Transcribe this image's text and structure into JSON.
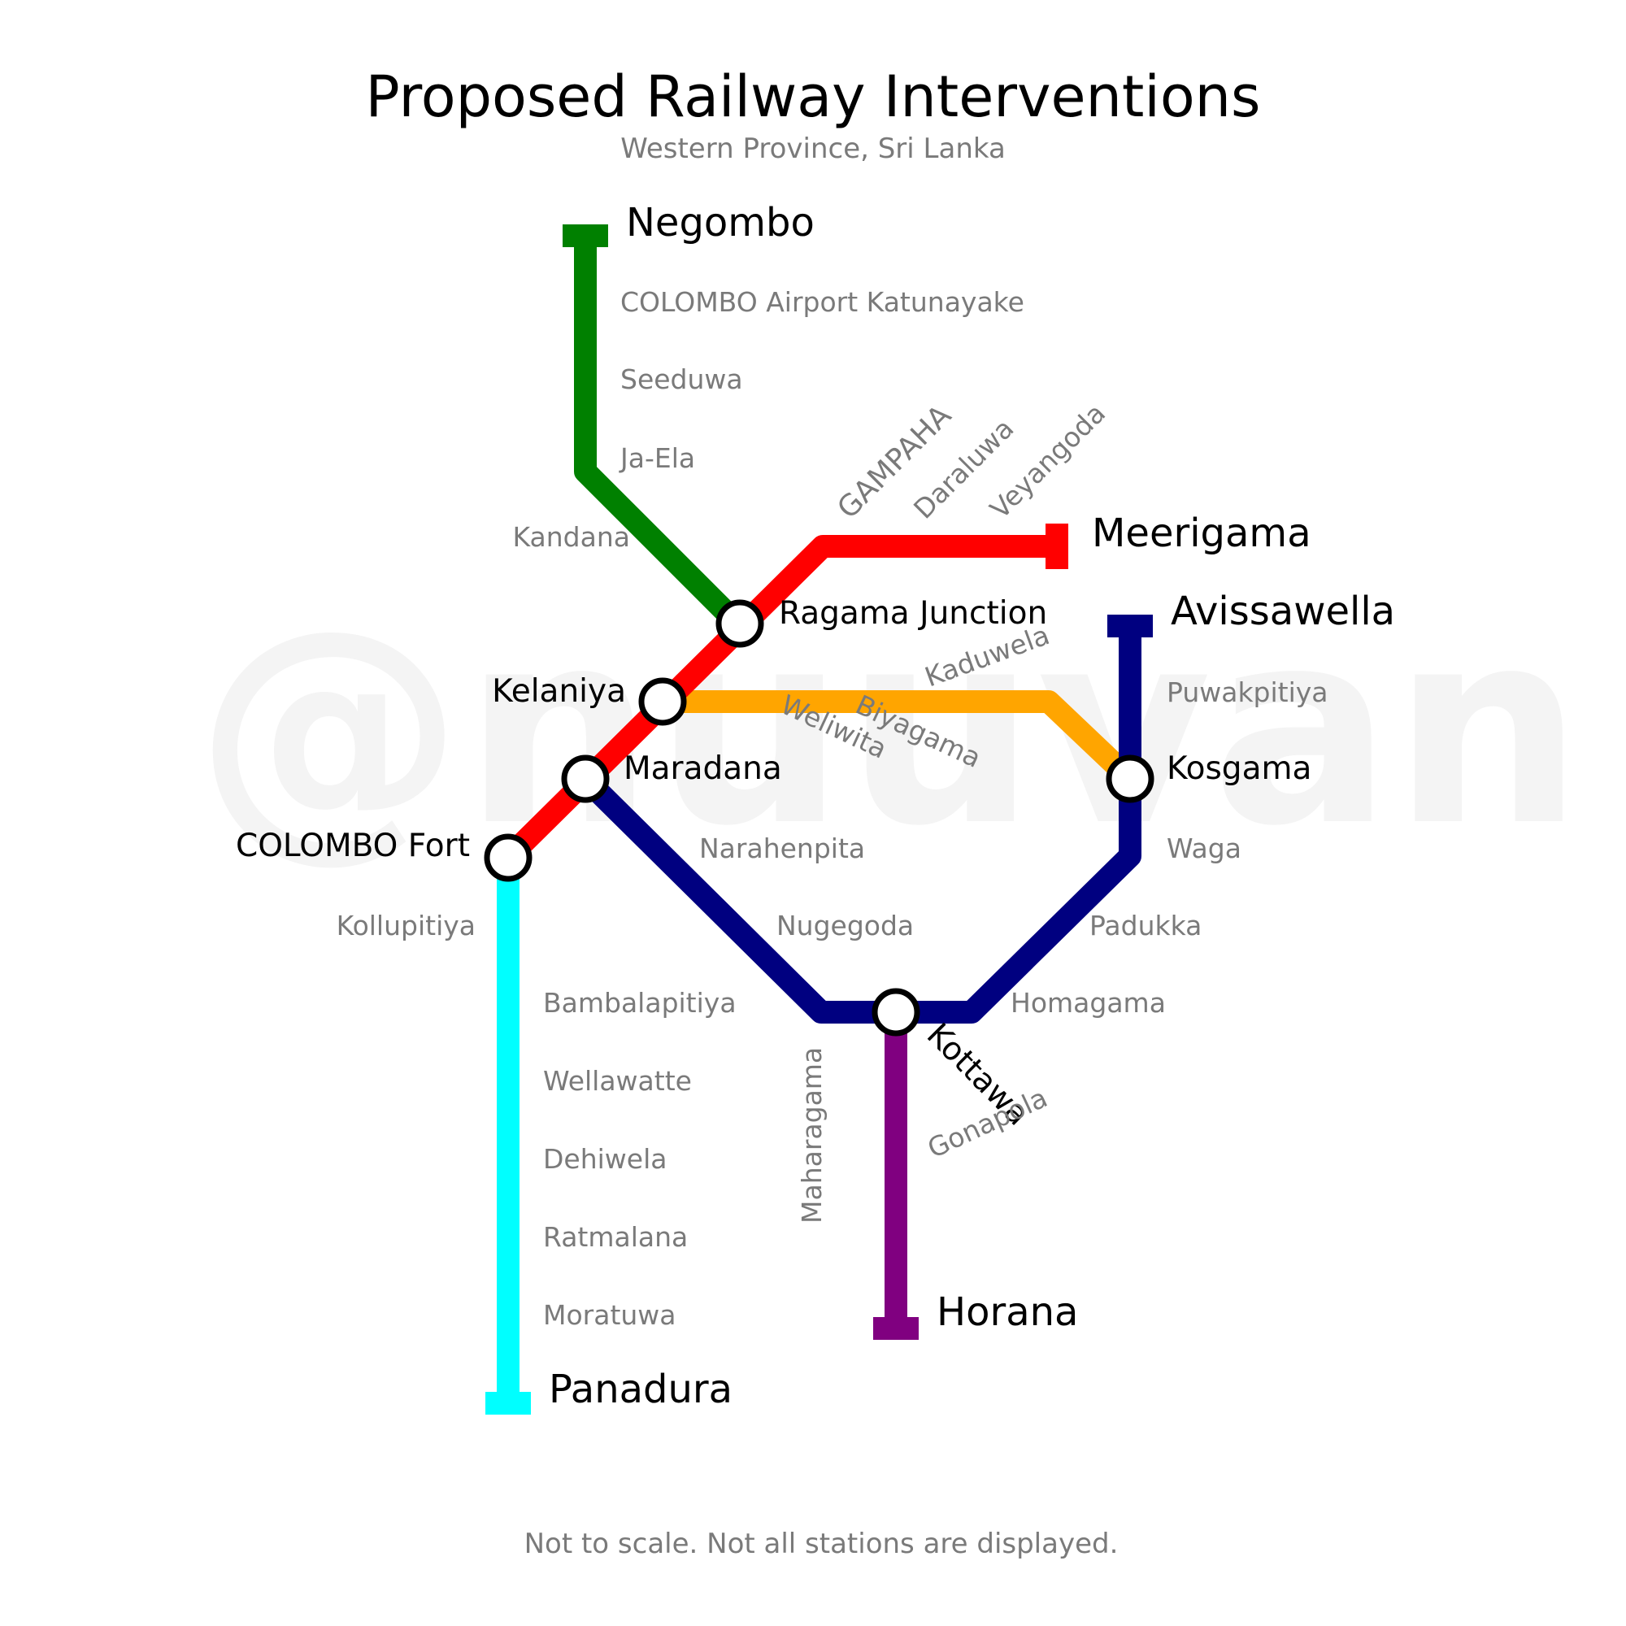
{
  "title": "Proposed Railway Interventions",
  "subtitle": "Western Province, Sri Lanka",
  "footer": "Not to scale. Not all stations are displayed.",
  "watermark": "@nuuvan",
  "lines": {
    "green": {
      "color": "#008000"
    },
    "red": {
      "color": "#ff0000"
    },
    "orange": {
      "color": "#ffa500"
    },
    "navy": {
      "color": "#000080"
    },
    "purple": {
      "color": "#800080"
    },
    "cyan": {
      "color": "#00ffff"
    }
  },
  "termini": {
    "negombo": "Negombo",
    "meerigama": "Meerigama",
    "avissawella": "Avissawella",
    "horana": "Horana",
    "panadura": "Panadura"
  },
  "interchanges": {
    "ragama": "Ragama Junction",
    "kelaniya": "Kelaniya",
    "maradana": "Maradana",
    "colombo_fort": "COLOMBO Fort",
    "kosgama": "Kosgama",
    "kottawa": "Kottawa"
  },
  "stations": {
    "airport": "COLOMBO Airport Katunayake",
    "seeduwa": "Seeduwa",
    "ja_ela": "Ja-Ela",
    "kandana": "Kandana",
    "gampaha": "GAMPAHA",
    "daraluwa": "Daraluwa",
    "veyangoda": "Veyangoda",
    "kaduwela": "Kaduwela",
    "biyagama": "Biyagama",
    "weliwita": "Weliwita",
    "puwakpitiya": "Puwakpitiya",
    "waga": "Waga",
    "padukka": "Padukka",
    "homagama": "Homagama",
    "narahenpita": "Narahenpita",
    "nugegoda": "Nugegoda",
    "maharagama": "Maharagama",
    "gonapola": "Gonapola",
    "kollupitiya": "Kollupitiya",
    "bambalapitiya": "Bambalapitiya",
    "wellawatte": "Wellawatte",
    "dehiwela": "Dehiwela",
    "ratmalana": "Ratmalana",
    "moratuwa": "Moratuwa"
  }
}
